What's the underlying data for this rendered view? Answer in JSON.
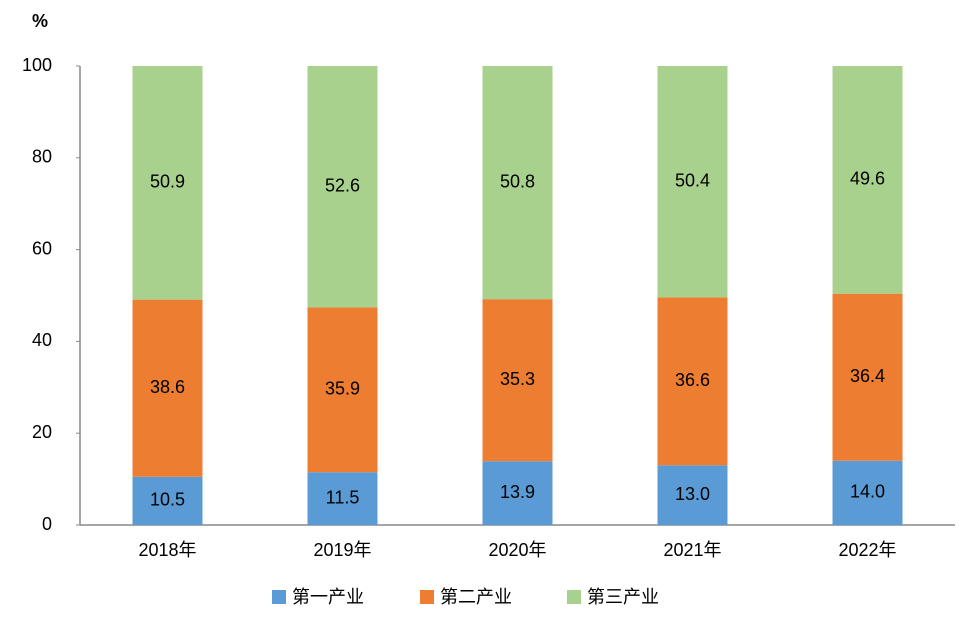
{
  "chart_data": {
    "type": "bar",
    "stacked": true,
    "y_unit_label": "%",
    "categories": [
      "2018年",
      "2019年",
      "2020年",
      "2021年",
      "2022年"
    ],
    "series": [
      {
        "name": "第一产业",
        "color": "#5b9bd5",
        "values": [
          10.5,
          11.5,
          13.9,
          13.0,
          14.0
        ],
        "value_labels": [
          "10.5",
          "11.5",
          "13.9",
          "13.0",
          "14.0"
        ]
      },
      {
        "name": "第二产业",
        "color": "#ed7d31",
        "values": [
          38.6,
          35.9,
          35.3,
          36.6,
          36.4
        ]
      },
      {
        "name": "第三产业",
        "color": "#a9d18e",
        "values": [
          50.9,
          52.6,
          50.8,
          50.4,
          49.6
        ]
      }
    ],
    "ylim": [
      0,
      100
    ],
    "yticks": [
      0,
      20,
      40,
      60,
      80,
      100
    ],
    "grid": false,
    "legend": "bottom"
  }
}
